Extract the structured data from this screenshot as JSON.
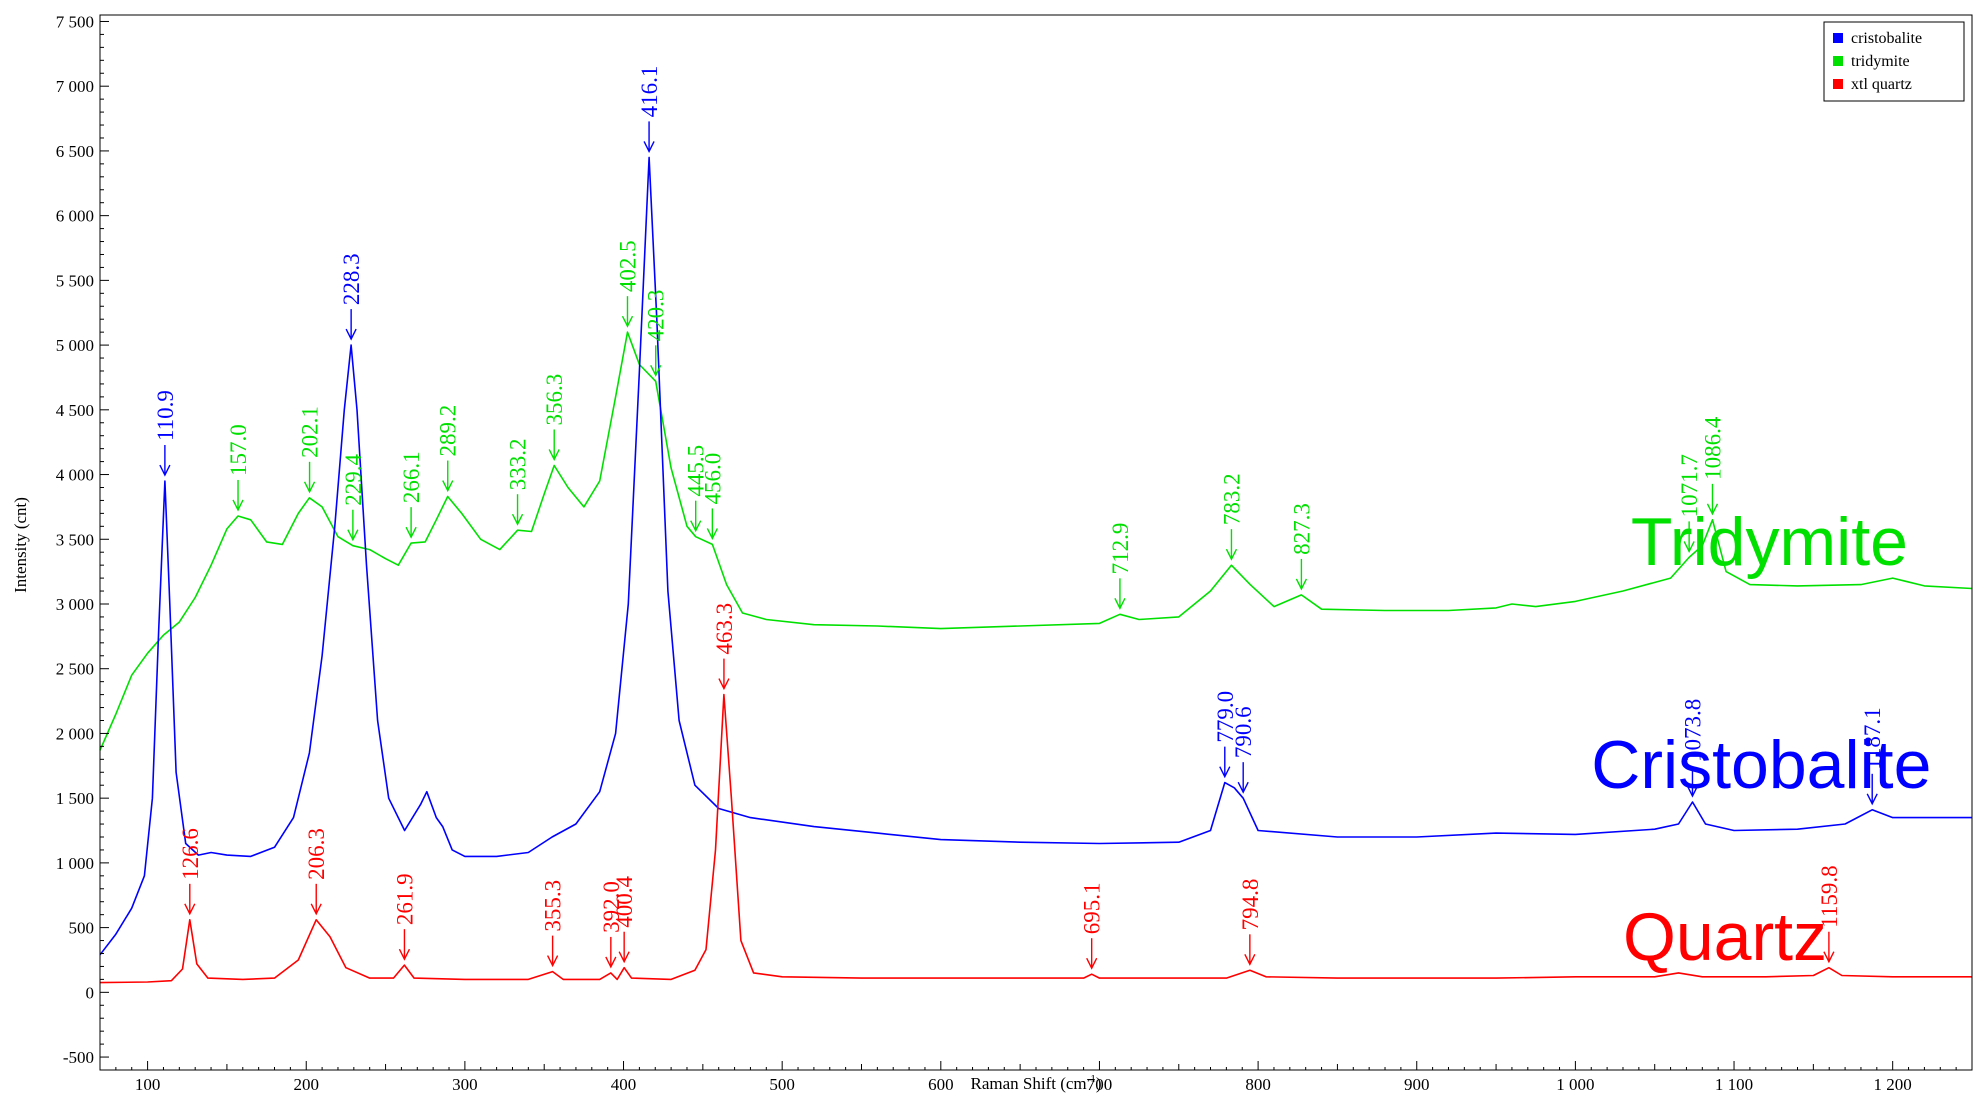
{
  "chart_data": {
    "type": "line",
    "xlabel": "Raman Shift (cm",
    "xlabel_sup": "-1",
    "xlabel_close": ")",
    "ylabel": "Intensity (cnt)",
    "xlim": [
      70,
      1250
    ],
    "ylim": [
      -600,
      7550
    ],
    "x_ticks": [
      100,
      200,
      300,
      400,
      500,
      600,
      700,
      800,
      900,
      1000,
      1100,
      1200
    ],
    "x_tick_labels": [
      "100",
      "200",
      "300",
      "400",
      "500",
      "600",
      "700",
      "800",
      "900",
      "1 000",
      "1 100",
      "1 200"
    ],
    "y_ticks": [
      -500,
      0,
      500,
      1000,
      1500,
      2000,
      2500,
      3000,
      3500,
      4000,
      4500,
      5000,
      5500,
      6000,
      6500,
      7000,
      7500
    ],
    "y_tick_labels": [
      "-500",
      "0",
      "500",
      "1 000",
      "1 500",
      "2 000",
      "2 500",
      "3 000",
      "3 500",
      "4 000",
      "4 500",
      "5 000",
      "5 500",
      "6 000",
      "6 500",
      "7 000",
      "7 500"
    ],
    "legend": {
      "position": "top-right",
      "entries": [
        {
          "label": "cristobalite",
          "color": "#0000ff"
        },
        {
          "label": "tridymite",
          "color": "#00e000"
        },
        {
          "label": "xtl quartz",
          "color": "#ff0000"
        }
      ]
    },
    "big_labels": [
      {
        "text": "Tridymite",
        "color": "#00e000",
        "x": 1035,
        "y": 3300
      },
      {
        "text": "Cristobalite",
        "color": "#0000ff",
        "x": 1010,
        "y": 1580
      },
      {
        "text": "Quartz",
        "color": "#ff0000",
        "x": 1030,
        "y": 250
      }
    ],
    "series": [
      {
        "name": "tridymite",
        "color": "#00e000",
        "points": [
          [
            70,
            1870
          ],
          [
            80,
            2150
          ],
          [
            90,
            2450
          ],
          [
            100,
            2620
          ],
          [
            110,
            2760
          ],
          [
            120,
            2860
          ],
          [
            130,
            3050
          ],
          [
            140,
            3300
          ],
          [
            150,
            3580
          ],
          [
            157,
            3680
          ],
          [
            165,
            3650
          ],
          [
            175,
            3480
          ],
          [
            185,
            3460
          ],
          [
            195,
            3700
          ],
          [
            202,
            3820
          ],
          [
            210,
            3750
          ],
          [
            220,
            3520
          ],
          [
            229.4,
            3450
          ],
          [
            240,
            3420
          ],
          [
            250,
            3350
          ],
          [
            258,
            3300
          ],
          [
            266.1,
            3470
          ],
          [
            275,
            3480
          ],
          [
            282,
            3650
          ],
          [
            289.2,
            3830
          ],
          [
            298,
            3700
          ],
          [
            310,
            3500
          ],
          [
            322,
            3420
          ],
          [
            333.2,
            3570
          ],
          [
            342,
            3560
          ],
          [
            350,
            3850
          ],
          [
            356.3,
            4070
          ],
          [
            365,
            3900
          ],
          [
            375,
            3750
          ],
          [
            385,
            3950
          ],
          [
            395,
            4600
          ],
          [
            402.5,
            5100
          ],
          [
            410,
            4850
          ],
          [
            420.3,
            4720
          ],
          [
            430,
            4050
          ],
          [
            440,
            3600
          ],
          [
            445.5,
            3520
          ],
          [
            456,
            3460
          ],
          [
            465,
            3150
          ],
          [
            475,
            2930
          ],
          [
            490,
            2880
          ],
          [
            520,
            2840
          ],
          [
            560,
            2830
          ],
          [
            600,
            2810
          ],
          [
            650,
            2830
          ],
          [
            700,
            2850
          ],
          [
            712.9,
            2920
          ],
          [
            725,
            2880
          ],
          [
            750,
            2900
          ],
          [
            770,
            3100
          ],
          [
            783.2,
            3300
          ],
          [
            795,
            3150
          ],
          [
            810,
            2980
          ],
          [
            827.3,
            3070
          ],
          [
            840,
            2960
          ],
          [
            880,
            2950
          ],
          [
            920,
            2950
          ],
          [
            950,
            2970
          ],
          [
            960,
            3000
          ],
          [
            975,
            2980
          ],
          [
            1000,
            3020
          ],
          [
            1030,
            3100
          ],
          [
            1060,
            3200
          ],
          [
            1071.7,
            3360
          ],
          [
            1080,
            3450
          ],
          [
            1086.4,
            3650
          ],
          [
            1095,
            3250
          ],
          [
            1110,
            3150
          ],
          [
            1140,
            3140
          ],
          [
            1180,
            3150
          ],
          [
            1200,
            3200
          ],
          [
            1220,
            3140
          ],
          [
            1250,
            3120
          ]
        ]
      },
      {
        "name": "cristobalite",
        "color": "#0000ff",
        "points": [
          [
            70,
            290
          ],
          [
            80,
            450
          ],
          [
            90,
            650
          ],
          [
            98,
            900
          ],
          [
            103,
            1500
          ],
          [
            107,
            2800
          ],
          [
            110.9,
            3950
          ],
          [
            114,
            3000
          ],
          [
            118,
            1700
          ],
          [
            124,
            1150
          ],
          [
            132,
            1060
          ],
          [
            140,
            1080
          ],
          [
            150,
            1060
          ],
          [
            165,
            1050
          ],
          [
            180,
            1120
          ],
          [
            192,
            1350
          ],
          [
            202,
            1850
          ],
          [
            210,
            2600
          ],
          [
            218,
            3600
          ],
          [
            224,
            4500
          ],
          [
            228.3,
            5000
          ],
          [
            232,
            4500
          ],
          [
            238,
            3300
          ],
          [
            245,
            2100
          ],
          [
            252,
            1500
          ],
          [
            262,
            1250
          ],
          [
            272,
            1450
          ],
          [
            276,
            1550
          ],
          [
            282,
            1350
          ],
          [
            286,
            1280
          ],
          [
            292,
            1100
          ],
          [
            300,
            1050
          ],
          [
            320,
            1050
          ],
          [
            340,
            1080
          ],
          [
            355,
            1200
          ],
          [
            370,
            1300
          ],
          [
            385,
            1550
          ],
          [
            395,
            2000
          ],
          [
            403,
            3000
          ],
          [
            410,
            4800
          ],
          [
            416.1,
            6450
          ],
          [
            421,
            5200
          ],
          [
            428,
            3100
          ],
          [
            435,
            2100
          ],
          [
            445,
            1600
          ],
          [
            460,
            1420
          ],
          [
            480,
            1350
          ],
          [
            520,
            1280
          ],
          [
            560,
            1230
          ],
          [
            600,
            1180
          ],
          [
            650,
            1160
          ],
          [
            700,
            1150
          ],
          [
            750,
            1160
          ],
          [
            770,
            1250
          ],
          [
            779,
            1620
          ],
          [
            785,
            1580
          ],
          [
            790.6,
            1500
          ],
          [
            800,
            1250
          ],
          [
            850,
            1200
          ],
          [
            900,
            1200
          ],
          [
            950,
            1230
          ],
          [
            1000,
            1220
          ],
          [
            1050,
            1260
          ],
          [
            1065,
            1300
          ],
          [
            1073.8,
            1470
          ],
          [
            1082,
            1300
          ],
          [
            1100,
            1250
          ],
          [
            1140,
            1260
          ],
          [
            1170,
            1300
          ],
          [
            1187.1,
            1410
          ],
          [
            1200,
            1350
          ],
          [
            1250,
            1350
          ]
        ]
      },
      {
        "name": "xtl quartz",
        "color": "#ff0000",
        "points": [
          [
            70,
            75
          ],
          [
            100,
            80
          ],
          [
            115,
            90
          ],
          [
            122,
            180
          ],
          [
            126.6,
            560
          ],
          [
            131,
            220
          ],
          [
            138,
            110
          ],
          [
            160,
            100
          ],
          [
            180,
            110
          ],
          [
            195,
            250
          ],
          [
            206.3,
            560
          ],
          [
            215,
            430
          ],
          [
            225,
            190
          ],
          [
            240,
            110
          ],
          [
            255,
            110
          ],
          [
            261.9,
            210
          ],
          [
            268,
            110
          ],
          [
            300,
            100
          ],
          [
            340,
            100
          ],
          [
            355.3,
            160
          ],
          [
            362,
            100
          ],
          [
            385,
            100
          ],
          [
            392,
            150
          ],
          [
            396,
            100
          ],
          [
            400.4,
            190
          ],
          [
            405,
            110
          ],
          [
            430,
            100
          ],
          [
            445,
            170
          ],
          [
            452,
            330
          ],
          [
            458,
            1100
          ],
          [
            463.3,
            2300
          ],
          [
            468,
            1500
          ],
          [
            474,
            400
          ],
          [
            482,
            150
          ],
          [
            500,
            120
          ],
          [
            550,
            110
          ],
          [
            600,
            110
          ],
          [
            650,
            110
          ],
          [
            690,
            110
          ],
          [
            695.1,
            140
          ],
          [
            700,
            110
          ],
          [
            780,
            110
          ],
          [
            794.8,
            170
          ],
          [
            805,
            120
          ],
          [
            850,
            110
          ],
          [
            900,
            110
          ],
          [
            950,
            110
          ],
          [
            1000,
            120
          ],
          [
            1050,
            120
          ],
          [
            1065,
            150
          ],
          [
            1080,
            120
          ],
          [
            1120,
            120
          ],
          [
            1150,
            130
          ],
          [
            1159.8,
            190
          ],
          [
            1168,
            130
          ],
          [
            1200,
            120
          ],
          [
            1250,
            120
          ]
        ]
      }
    ],
    "annotations": [
      {
        "text": "110.9",
        "x": 110.9,
        "y": 3950,
        "color": "#0000ff"
      },
      {
        "text": "228.3",
        "x": 228.3,
        "y": 5000,
        "color": "#0000ff"
      },
      {
        "text": "416.1",
        "x": 416.1,
        "y": 6450,
        "color": "#0000ff"
      },
      {
        "text": "779.0",
        "x": 779.0,
        "y": 1620,
        "color": "#0000ff"
      },
      {
        "text": "790.6",
        "x": 790.6,
        "y": 1500,
        "color": "#0000ff"
      },
      {
        "text": "1073.8",
        "x": 1073.8,
        "y": 1470,
        "color": "#0000ff"
      },
      {
        "text": "1187.1",
        "x": 1187.1,
        "y": 1410,
        "color": "#0000ff"
      },
      {
        "text": "157.0",
        "x": 157.0,
        "y": 3680,
        "color": "#00e000"
      },
      {
        "text": "202.1",
        "x": 202.1,
        "y": 3820,
        "color": "#00e000"
      },
      {
        "text": "229.4",
        "x": 229.4,
        "y": 3450,
        "color": "#00e000"
      },
      {
        "text": "266.1",
        "x": 266.1,
        "y": 3470,
        "color": "#00e000"
      },
      {
        "text": "289.2",
        "x": 289.2,
        "y": 3830,
        "color": "#00e000"
      },
      {
        "text": "333.2",
        "x": 333.2,
        "y": 3570,
        "color": "#00e000"
      },
      {
        "text": "356.3",
        "x": 356.3,
        "y": 4070,
        "color": "#00e000"
      },
      {
        "text": "402.5",
        "x": 402.5,
        "y": 5100,
        "color": "#00e000"
      },
      {
        "text": "420.3",
        "x": 420.3,
        "y": 4720,
        "color": "#00e000"
      },
      {
        "text": "445.5",
        "x": 445.5,
        "y": 3520,
        "color": "#00e000"
      },
      {
        "text": "456.0",
        "x": 456.0,
        "y": 3460,
        "color": "#00e000"
      },
      {
        "text": "712.9",
        "x": 712.9,
        "y": 2920,
        "color": "#00e000"
      },
      {
        "text": "783.2",
        "x": 783.2,
        "y": 3300,
        "color": "#00e000"
      },
      {
        "text": "827.3",
        "x": 827.3,
        "y": 3070,
        "color": "#00e000"
      },
      {
        "text": "1071.7",
        "x": 1071.7,
        "y": 3360,
        "color": "#00e000"
      },
      {
        "text": "1086.4",
        "x": 1086.4,
        "y": 3650,
        "color": "#00e000"
      },
      {
        "text": "126.6",
        "x": 126.6,
        "y": 560,
        "color": "#ff0000"
      },
      {
        "text": "206.3",
        "x": 206.3,
        "y": 560,
        "color": "#ff0000"
      },
      {
        "text": "261.9",
        "x": 261.9,
        "y": 210,
        "color": "#ff0000"
      },
      {
        "text": "355.3",
        "x": 355.3,
        "y": 160,
        "color": "#ff0000"
      },
      {
        "text": "392.0",
        "x": 392.0,
        "y": 150,
        "color": "#ff0000"
      },
      {
        "text": "400.4",
        "x": 400.4,
        "y": 190,
        "color": "#ff0000"
      },
      {
        "text": "463.3",
        "x": 463.3,
        "y": 2300,
        "color": "#ff0000"
      },
      {
        "text": "695.1",
        "x": 695.1,
        "y": 140,
        "color": "#ff0000"
      },
      {
        "text": "794.8",
        "x": 794.8,
        "y": 170,
        "color": "#ff0000"
      },
      {
        "text": "1159.8",
        "x": 1159.8,
        "y": 190,
        "color": "#ff0000"
      }
    ]
  }
}
